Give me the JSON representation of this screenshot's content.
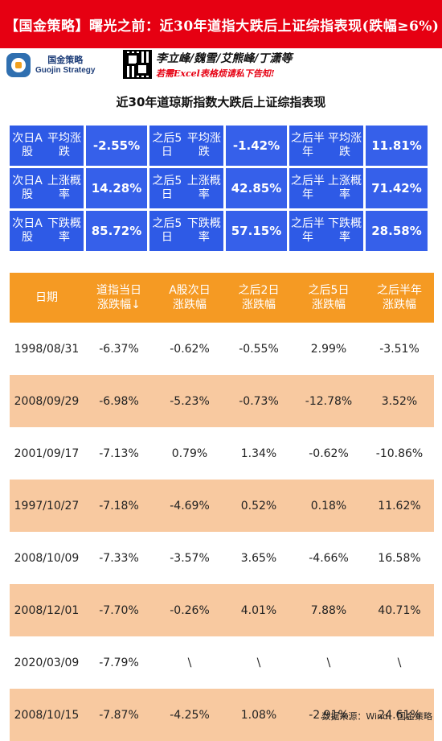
{
  "banner": {
    "title": "【国金策略】曙光之前：近30年道指大跌后上证综指表现(跌幅≥6%)"
  },
  "brand": {
    "logo_cn": "国金策略",
    "logo_en": "Guojin Strategy",
    "authors": "李立峰/魏雪/艾熊峰/丁潇等",
    "excel_note": "若需Excel表格烦请私下告知!"
  },
  "table_title": "近30年道琼斯指数大跌后上证综指表现",
  "stats": [
    [
      {
        "label1": "次日A股",
        "label2": "平均涨跌",
        "value": "-2.55%"
      },
      {
        "label1": "之后5日",
        "label2": "平均涨跌",
        "value": "-1.42%"
      },
      {
        "label1": "之后半年",
        "label2": "平均涨跌",
        "value": "11.81%"
      }
    ],
    [
      {
        "label1": "次日A股",
        "label2": "上涨概率",
        "value": "14.28%"
      },
      {
        "label1": "之后5日",
        "label2": "上涨概率",
        "value": "42.85%"
      },
      {
        "label1": "之后半年",
        "label2": "上涨概率",
        "value": "71.42%"
      }
    ],
    [
      {
        "label1": "次日A股",
        "label2": "下跌概率",
        "value": "85.72%"
      },
      {
        "label1": "之后5日",
        "label2": "下跌概率",
        "value": "57.15%"
      },
      {
        "label1": "之后半年",
        "label2": "下跌概率",
        "value": "28.58%"
      }
    ]
  ],
  "columns": [
    {
      "line1": "日期",
      "line2": ""
    },
    {
      "line1": "道指当日",
      "line2": "涨跌幅↓"
    },
    {
      "line1": "A股次日",
      "line2": "涨跌幅"
    },
    {
      "line1": "之后2日",
      "line2": "涨跌幅"
    },
    {
      "line1": "之后5日",
      "line2": "涨跌幅"
    },
    {
      "line1": "之后半年",
      "line2": "涨跌幅"
    }
  ],
  "rows": [
    [
      "1998/08/31",
      "-6.37%",
      "-0.62%",
      "-0.55%",
      "2.99%",
      "-3.51%"
    ],
    [
      "2008/09/29",
      "-6.98%",
      "-5.23%",
      "-0.73%",
      "-12.78%",
      "3.52%"
    ],
    [
      "2001/09/17",
      "-7.13%",
      "0.79%",
      "1.34%",
      "-0.62%",
      "-10.86%"
    ],
    [
      "1997/10/27",
      "-7.18%",
      "-4.69%",
      "0.52%",
      "0.18%",
      "11.62%"
    ],
    [
      "2008/10/09",
      "-7.33%",
      "-3.57%",
      "3.65%",
      "-4.66%",
      "16.58%"
    ],
    [
      "2008/12/01",
      "-7.70%",
      "-0.26%",
      "4.01%",
      "7.88%",
      "40.71%"
    ],
    [
      "2020/03/09",
      "-7.79%",
      "\\",
      "\\",
      "\\",
      "\\"
    ],
    [
      "2008/10/15",
      "-7.87%",
      "-4.25%",
      "1.08%",
      "-2.91%",
      "24.61%"
    ]
  ],
  "source": "数据来源：Wind、国金策略",
  "colors": {
    "banner": "#e60012",
    "stat_blue": "#2e5ae6",
    "header_orange": "#f59a23",
    "row_alt": "#f8c9a0"
  }
}
